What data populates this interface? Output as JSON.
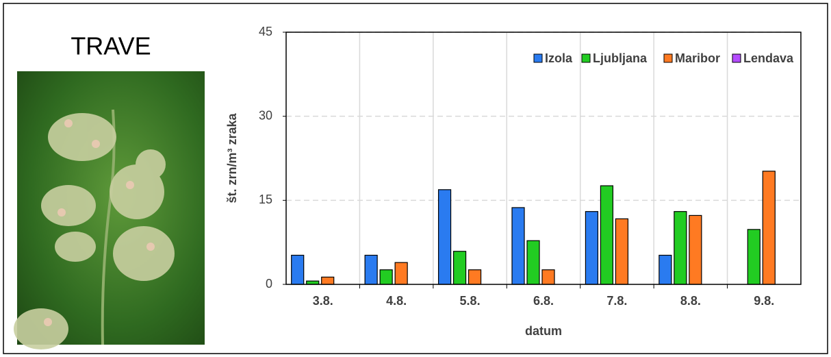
{
  "header": {
    "title": "TRAVE"
  },
  "chart_data": {
    "type": "bar",
    "categories": [
      "3.8.",
      "4.8.",
      "5.8.",
      "6.8.",
      "7.8.",
      "8.8.",
      "9.8."
    ],
    "series": [
      {
        "name": "Izola",
        "color": "#2a7bf0",
        "values": [
          5.2,
          5.2,
          16.9,
          13.7,
          13.0,
          5.2,
          null
        ]
      },
      {
        "name": "Ljubljana",
        "color": "#22cc22",
        "values": [
          0.6,
          2.6,
          5.9,
          7.8,
          17.6,
          13.0,
          9.8
        ]
      },
      {
        "name": "Maribor",
        "color": "#ff7a22",
        "values": [
          1.3,
          3.9,
          2.6,
          2.6,
          11.7,
          12.3,
          20.2
        ]
      },
      {
        "name": "Lendava",
        "color": "#b44cff",
        "values": [
          null,
          null,
          null,
          null,
          null,
          null,
          null
        ]
      }
    ],
    "ylabel": "št. zrn/m³ zraka",
    "xlabel": "datum",
    "ylim": [
      0,
      45
    ],
    "yticks": [
      0,
      15,
      30,
      45
    ],
    "grid": true,
    "legend": "top-right"
  }
}
